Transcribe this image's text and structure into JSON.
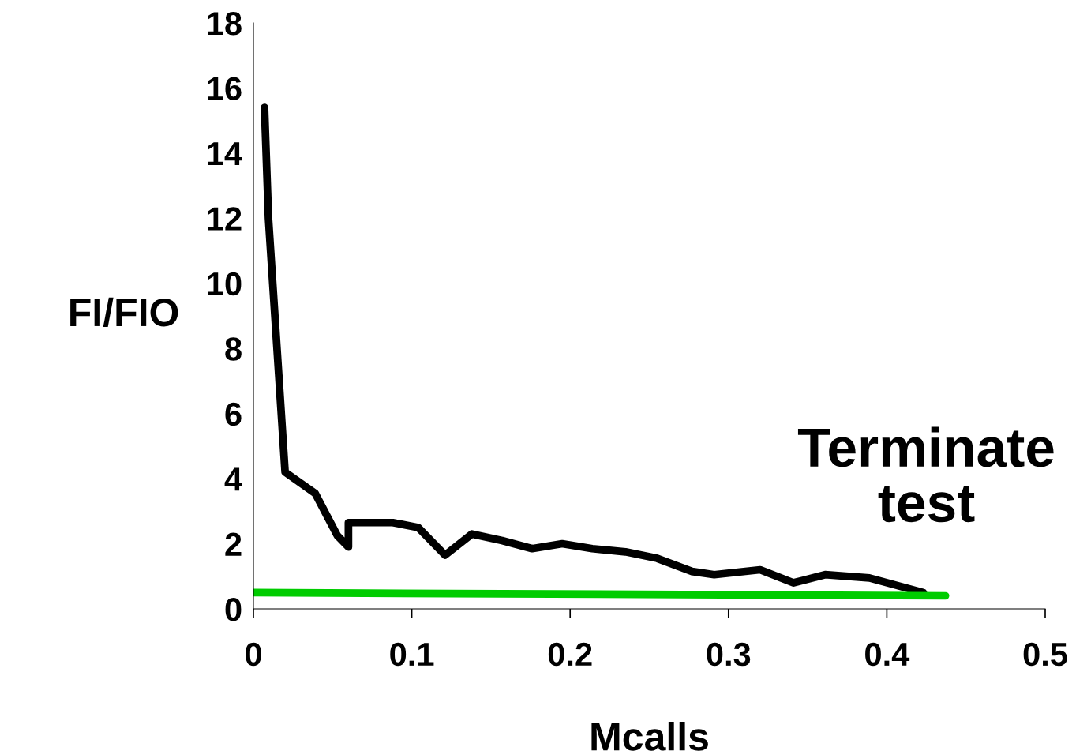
{
  "chart_data": {
    "type": "line",
    "xlabel": "Mcalls",
    "ylabel": "FI/FIO",
    "xlim": [
      0,
      0.5
    ],
    "xticks": [
      0,
      0.1,
      0.2,
      0.3,
      0.4,
      0.5
    ],
    "ylim": [
      0,
      18
    ],
    "yticks": [
      0,
      2,
      4,
      6,
      8,
      10,
      12,
      14,
      16,
      18
    ],
    "grid": false,
    "legend": false,
    "marker": "none",
    "line_style": "solid",
    "annotations": [
      "Terminate\ntest"
    ],
    "series": [
      {
        "color": "#000000",
        "x": [
          0.007,
          0.0095,
          0.02,
          0.039,
          0.053,
          0.06,
          0.06,
          0.088,
          0.104,
          0.121,
          0.138,
          0.157,
          0.176,
          0.195,
          0.214,
          0.235,
          0.255,
          0.277,
          0.291,
          0.32,
          0.341,
          0.361,
          0.389,
          0.423
        ],
        "values": [
          15.4,
          12.0,
          4.2,
          3.55,
          2.25,
          1.9,
          2.65,
          2.65,
          2.5,
          1.65,
          2.3,
          2.1,
          1.85,
          2.0,
          1.85,
          1.75,
          1.55,
          1.15,
          1.05,
          1.2,
          0.8,
          1.05,
          0.95,
          0.5
        ]
      },
      {
        "color": "#00cc00",
        "x": [
          0,
          0.437
        ],
        "values": [
          0.5,
          0.4
        ]
      }
    ]
  }
}
